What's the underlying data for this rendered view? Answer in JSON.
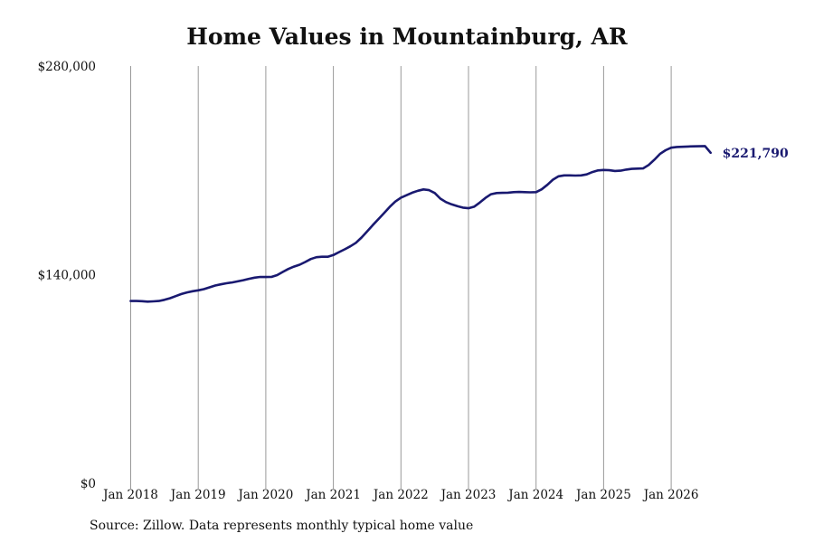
{
  "page": {
    "title": "Home Values in Mountainburg, AR",
    "source": "Source: Zillow. Data represents monthly typical home value"
  },
  "colors": {
    "line": "#191970",
    "grid": "#999999",
    "text": "#111111"
  },
  "chart_data": {
    "type": "line",
    "title": "Home Values in Mountainburg, AR",
    "xlabel": "",
    "ylabel": "",
    "ylim": [
      0,
      280000
    ],
    "y_ticks": [
      0,
      140000,
      280000
    ],
    "y_tick_labels": [
      "$0",
      "$140,000",
      "$280,000"
    ],
    "x_ticks": [
      "2018-01",
      "2019-01",
      "2020-01",
      "2021-01",
      "2022-01",
      "2023-01",
      "2024-01",
      "2025-01",
      "2026-01"
    ],
    "x_tick_labels": [
      "Jan 2018",
      "Jan 2019",
      "Jan 2020",
      "Jan 2021",
      "Jan 2022",
      "Jan 2023",
      "Jan 2024",
      "Jan 2025",
      "Jan 2026"
    ],
    "grid": "vertical",
    "end_label": "$221,790",
    "series": [
      {
        "x": [
          "2018-01",
          "2018-02",
          "2018-03",
          "2018-04",
          "2018-05",
          "2018-06",
          "2018-07",
          "2018-08",
          "2018-09",
          "2018-10",
          "2018-11",
          "2018-12",
          "2019-01",
          "2019-02",
          "2019-03",
          "2019-04",
          "2019-05",
          "2019-06",
          "2019-07",
          "2019-08",
          "2019-09",
          "2019-10",
          "2019-11",
          "2019-12",
          "2020-01",
          "2020-02",
          "2020-03",
          "2020-04",
          "2020-05",
          "2020-06",
          "2020-07",
          "2020-08",
          "2020-09",
          "2020-10",
          "2020-11",
          "2020-12",
          "2021-01",
          "2021-02",
          "2021-03",
          "2021-04",
          "2021-05",
          "2021-06",
          "2021-07",
          "2021-08",
          "2021-09",
          "2021-10",
          "2021-11",
          "2021-12",
          "2022-01",
          "2022-02",
          "2022-03",
          "2022-04",
          "2022-05",
          "2022-06",
          "2022-07",
          "2022-08",
          "2022-09",
          "2022-10",
          "2022-11",
          "2022-12",
          "2023-01",
          "2023-02",
          "2023-03",
          "2023-04",
          "2023-05",
          "2023-06",
          "2023-07",
          "2023-08",
          "2023-09",
          "2023-10",
          "2023-11",
          "2023-12",
          "2024-01",
          "2024-02",
          "2024-03",
          "2024-04",
          "2024-05",
          "2024-06",
          "2024-07",
          "2024-08",
          "2024-09",
          "2024-10",
          "2024-11",
          "2024-12",
          "2025-01",
          "2025-02",
          "2025-03",
          "2025-04",
          "2025-05",
          "2025-06",
          "2025-07",
          "2025-08",
          "2025-09",
          "2025-10",
          "2025-11",
          "2025-12",
          "2026-01",
          "2026-02",
          "2026-03",
          "2026-04",
          "2026-05",
          "2026-06",
          "2026-07",
          "2026-08"
        ],
        "values": [
          122300,
          122300,
          122200,
          121900,
          122100,
          122300,
          123100,
          124200,
          125600,
          127000,
          128100,
          128900,
          129500,
          130300,
          131500,
          132700,
          133500,
          134200,
          134800,
          135500,
          136300,
          137200,
          138000,
          138500,
          138400,
          138500,
          139700,
          141800,
          143800,
          145400,
          146700,
          148500,
          150500,
          151700,
          152000,
          152000,
          153200,
          155100,
          157000,
          159000,
          161400,
          164900,
          169100,
          173300,
          177300,
          181300,
          185500,
          189100,
          191700,
          193300,
          195000,
          196300,
          197200,
          196700,
          194800,
          191000,
          188700,
          187200,
          186000,
          185000,
          184600,
          185600,
          188400,
          191500,
          194000,
          194800,
          194900,
          195000,
          195400,
          195500,
          195400,
          195300,
          195400,
          197300,
          200300,
          203800,
          206000,
          206600,
          206600,
          206500,
          206600,
          207300,
          208900,
          210000,
          210300,
          210100,
          209600,
          209800,
          210500,
          211000,
          211200,
          211300,
          213600,
          217100,
          221000,
          223500,
          225200,
          225700,
          225800,
          226000,
          226100,
          226200,
          226300,
          221790
        ]
      }
    ]
  }
}
